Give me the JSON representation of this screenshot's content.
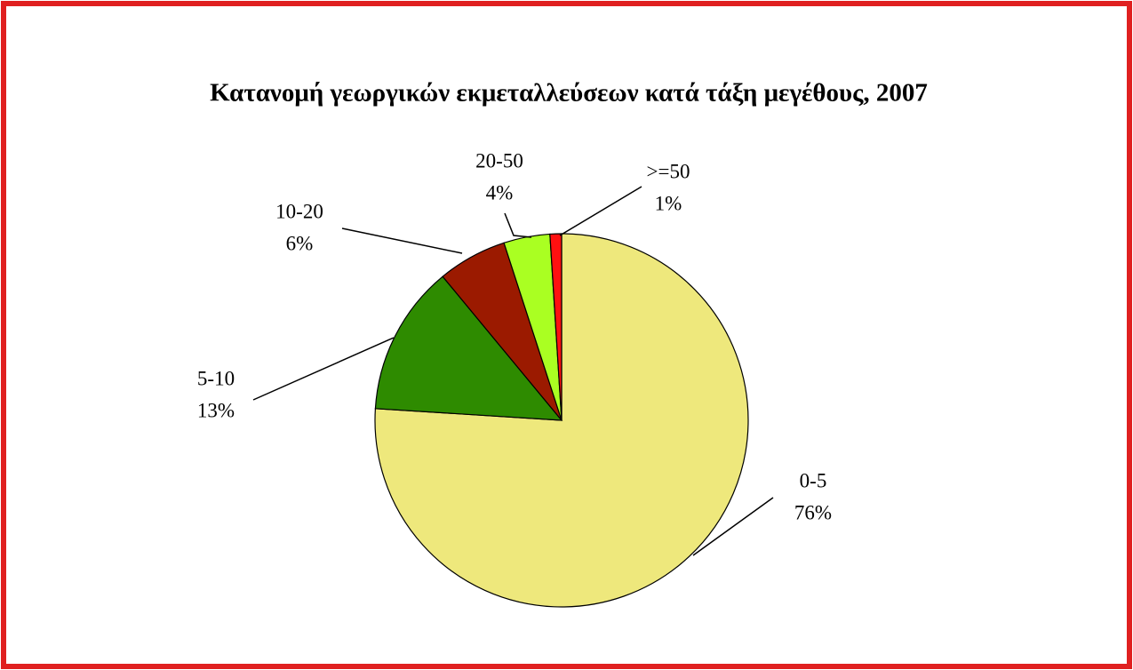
{
  "chart_data": {
    "type": "pie",
    "title": "Κατανομή γεωργικών εκμεταλλεύσεων κατά τάξη μεγέθους, 2007",
    "categories": [
      "0-5",
      "5-10",
      "10-20",
      "20-50",
      ">=50"
    ],
    "values": [
      76,
      13,
      6,
      4,
      1
    ],
    "value_labels": [
      "76%",
      "13%",
      "6%",
      "4%",
      "1%"
    ],
    "colors": [
      "#eee87c",
      "#2e8b00",
      "#9b1a00",
      "#aaff22",
      "#ff1010"
    ]
  }
}
